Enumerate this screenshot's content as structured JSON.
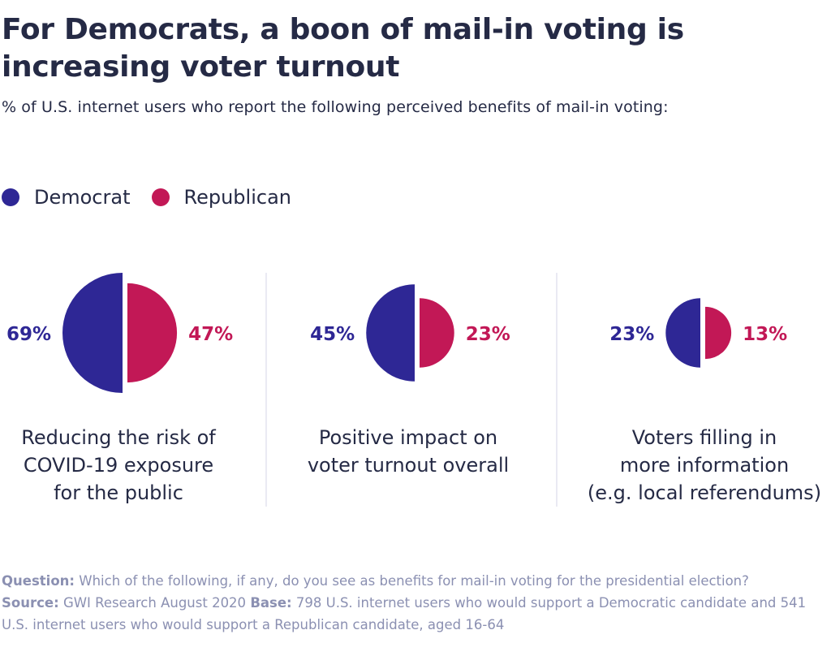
{
  "title": "For Democrats, a boon of mail-in voting is increasing voter turnout",
  "subtitle": "% of U.S. internet users who report the following perceived benefits of mail-in voting:",
  "colors": {
    "democrat": "#2e2795",
    "republican": "#c21856",
    "text": "#252a45",
    "footer": "#8b90b2"
  },
  "legend": [
    {
      "label": "Democrat",
      "color": "#2e2795"
    },
    {
      "label": "Republican",
      "color": "#c21856"
    }
  ],
  "chart_data": {
    "type": "half-circle comparison",
    "unit": "%",
    "categories": [
      "Reducing the risk of COVID-19 exposure for the public",
      "Positive impact on voter turnout overall",
      "Voters filling in more information (e.g. local referendums)"
    ],
    "category_lines": [
      [
        "Reducing the risk of",
        "COVID-19 exposure",
        "for the public"
      ],
      [
        "Positive impact on",
        "voter turnout overall"
      ],
      [
        "Voters filling in",
        "more information",
        "(e.g. local referendums)"
      ]
    ],
    "series": [
      {
        "name": "Democrat",
        "values": [
          69,
          45,
          23
        ],
        "labels": [
          "69%",
          "45%",
          "23%"
        ]
      },
      {
        "name": "Republican",
        "values": [
          47,
          23,
          13
        ],
        "labels": [
          "47%",
          "23%",
          "13%"
        ]
      }
    ]
  },
  "footer": {
    "question_label": "Question:",
    "question_text": "Which of the following, if any, do you see as benefits for mail-in voting for the presidential election?",
    "source_label": "Source:",
    "source_text": "GWI Research August 2020",
    "base_label": "Base:",
    "base_text": "798 U.S. internet users who would support a Democratic candidate and 541 U.S. internet users who would support a Republican candidate, aged 16-64"
  }
}
